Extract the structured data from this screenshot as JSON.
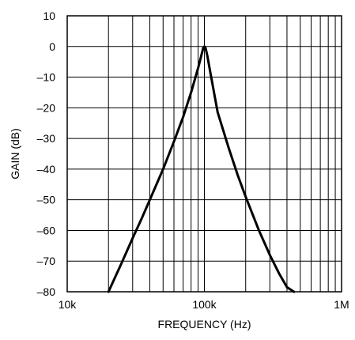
{
  "chart_data": {
    "type": "line",
    "title": "",
    "xlabel": "FREQUENCY (Hz)",
    "ylabel": "GAIN (dB)",
    "x_scale": "log",
    "xlim": [
      10000,
      1000000
    ],
    "ylim": [
      -80,
      10
    ],
    "grid": true,
    "x_ticks": [
      {
        "value": 10000,
        "label": "10k"
      },
      {
        "value": 100000,
        "label": "100k"
      },
      {
        "value": 1000000,
        "label": "1M"
      }
    ],
    "y_ticks": [
      {
        "value": 10,
        "label": "10"
      },
      {
        "value": 0,
        "label": "0"
      },
      {
        "value": -10,
        "label": "–10"
      },
      {
        "value": -20,
        "label": "–20"
      },
      {
        "value": -30,
        "label": "–30"
      },
      {
        "value": -40,
        "label": "–40"
      },
      {
        "value": -50,
        "label": "–50"
      },
      {
        "value": -60,
        "label": "–60"
      },
      {
        "value": -70,
        "label": "–70"
      },
      {
        "value": -80,
        "label": "–80"
      }
    ],
    "series": [
      {
        "x": [
          20000,
          25000,
          30000,
          35000,
          40000,
          50000,
          60000,
          70000,
          80000,
          90000,
          95000,
          98000,
          100000,
          102000,
          105000,
          110000,
          125000,
          150000,
          175000,
          200000,
          250000,
          300000,
          350000,
          400000,
          450000
        ],
        "y": [
          -80,
          -70.5,
          -62.5,
          -56,
          -50,
          -40,
          -31,
          -23,
          -15,
          -7,
          -3,
          -0.5,
          0,
          -0.5,
          -3,
          -8,
          -21.5,
          -33,
          -42,
          -49,
          -60,
          -68,
          -74,
          -78.5,
          -80
        ]
      }
    ]
  }
}
